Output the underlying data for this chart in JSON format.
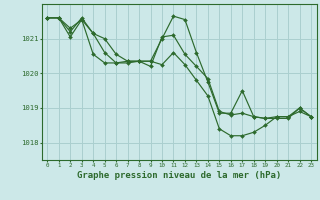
{
  "background_color": "#cce8e8",
  "grid_color": "#aacfcf",
  "line_color": "#2d6a2d",
  "marker_color": "#2d6a2d",
  "xlabel": "Graphe pression niveau de la mer (hPa)",
  "xlabel_fontsize": 6.5,
  "ylabel_ticks": [
    1018,
    1019,
    1020,
    1021
  ],
  "xlim": [
    -0.5,
    23.5
  ],
  "ylim": [
    1017.5,
    1022.0
  ],
  "xticks": [
    0,
    1,
    2,
    3,
    4,
    5,
    6,
    7,
    8,
    9,
    10,
    11,
    12,
    13,
    14,
    15,
    16,
    17,
    18,
    19,
    20,
    21,
    22,
    23
  ],
  "series": [
    [
      1021.6,
      1021.6,
      1021.3,
      1021.55,
      1021.15,
      1021.0,
      1020.55,
      1020.35,
      1020.35,
      1020.2,
      1021.05,
      1021.1,
      1020.55,
      1020.2,
      1019.85,
      1018.9,
      1018.8,
      1018.85,
      1018.75,
      1018.7,
      1018.75,
      1018.75,
      1018.9,
      1018.75
    ],
    [
      1021.6,
      1021.6,
      1021.2,
      1021.6,
      1021.15,
      1020.6,
      1020.3,
      1020.3,
      1020.35,
      1020.35,
      1021.0,
      1021.65,
      1021.55,
      1020.6,
      1019.75,
      1018.85,
      1018.85,
      1019.5,
      1018.75,
      1018.7,
      1018.7,
      1018.7,
      1019.0,
      1018.75
    ],
    [
      1021.6,
      1021.6,
      1021.05,
      1021.55,
      1020.55,
      1020.3,
      1020.3,
      1020.35,
      1020.35,
      1020.35,
      1020.25,
      1020.6,
      1020.25,
      1019.8,
      1019.35,
      1018.4,
      1018.2,
      1018.2,
      1018.3,
      1018.5,
      1018.75,
      1018.75,
      1019.0,
      1018.75
    ]
  ]
}
